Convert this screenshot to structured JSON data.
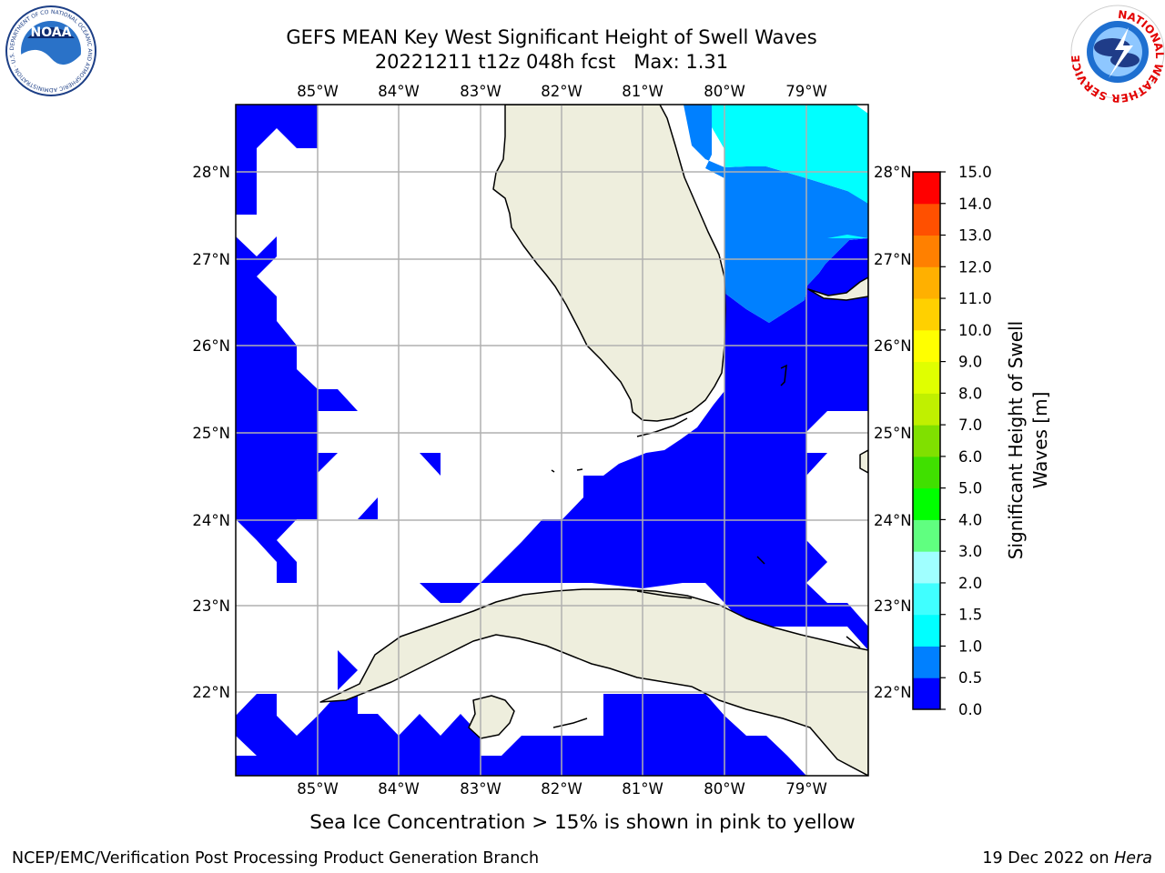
{
  "title": {
    "line1": "GEFS MEAN Key West Significant Height of Swell Waves",
    "line2": "20221211 t12z 048h fcst   Max: 1.31"
  },
  "map": {
    "lon_ticks": [
      "85°W",
      "84°W",
      "83°W",
      "82°W",
      "81°W",
      "80°W",
      "79°W"
    ],
    "lat_ticks": [
      "28°N",
      "27°N",
      "26°N",
      "25°N",
      "24°N",
      "23°N",
      "22°N"
    ],
    "colors": {
      "land": "#eeeedd",
      "water_0_0_5": "#0000ff",
      "water_0_5_1_0": "#0080ff",
      "water_1_0_1_5": "#00ffff",
      "grid": "#b0b0b0"
    }
  },
  "colorbar": {
    "label_line1": "Significant Height of Swell",
    "label_line2": "Waves [m]",
    "levels": [
      "0.0",
      "0.5",
      "1.0",
      "1.5",
      "2.0",
      "3.0",
      "4.0",
      "5.0",
      "6.0",
      "7.0",
      "8.0",
      "9.0",
      "10.0",
      "11.0",
      "12.0",
      "13.0",
      "14.0",
      "15.0"
    ],
    "colors": [
      "#0000ff",
      "#0080ff",
      "#00ffff",
      "#40ffff",
      "#a0ffff",
      "#60ff80",
      "#00ff00",
      "#40e000",
      "#80e000",
      "#c0f000",
      "#e0ff00",
      "#ffff00",
      "#ffd000",
      "#ffb000",
      "#ff8000",
      "#ff5000",
      "#ff0000"
    ]
  },
  "note": "Sea Ice Concentration > 15% is shown in pink to yellow",
  "footer": {
    "left": "NCEP/EMC/Verification Post Processing Product Generation Branch",
    "right_date": "19 Dec 2022 on ",
    "right_host": "Hera"
  },
  "logos": {
    "noaa": "NOAA",
    "noaa_ring_text": "NATIONAL OCEANIC AND ATMOSPHERIC ADMINISTRATION · U.S. DEPARTMENT OF COMMERCE",
    "nws_ring_text": "NATIONAL WEATHER SERVICE"
  }
}
